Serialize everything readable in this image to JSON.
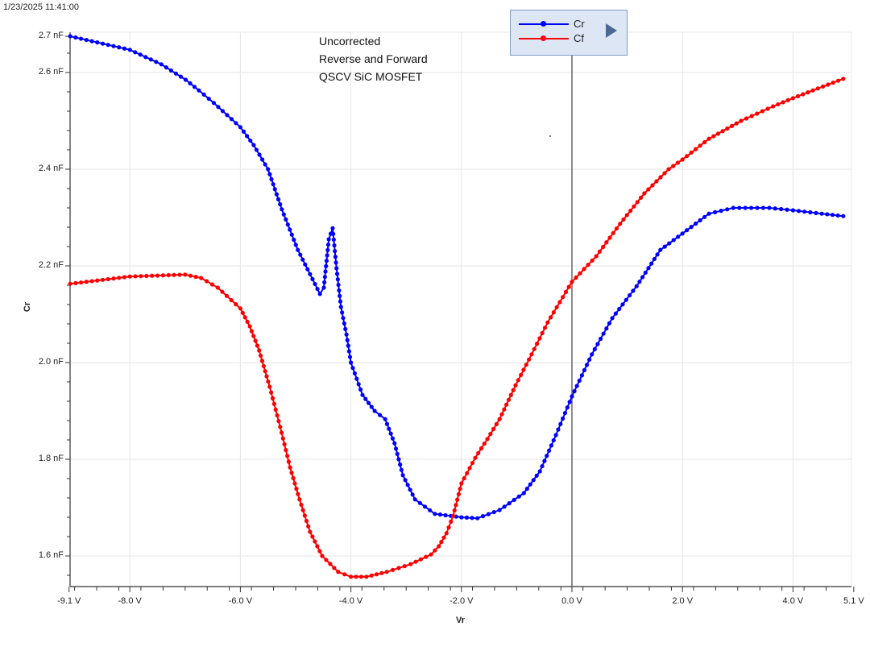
{
  "timestamp": "1/23/2025 11:41:00",
  "annotation": {
    "lines": [
      "Uncorrected",
      "Reverse and Forward",
      "QSCV SiC MOSFET"
    ]
  },
  "legend": {
    "items": [
      {
        "name": "Cr",
        "color": "#0000ff"
      },
      {
        "name": "Cf",
        "color": "#ff0000"
      }
    ],
    "expand_icon": "triangle-right-icon",
    "background": "#dde6f5"
  },
  "chart_data": {
    "type": "line",
    "title": "Uncorrected Reverse and Forward QSCV SiC MOSFET",
    "xlabel": "Vr",
    "ylabel": "Cr",
    "xlim": [
      -9.1,
      5.1
    ],
    "ylim": [
      1.55,
      2.7
    ],
    "x_unit": "V",
    "y_unit": "nF",
    "grid": true,
    "legend_position": "top-center",
    "x_tick_labels": [
      "-9.1 V",
      "-8.0 V",
      "-6.0 V",
      "-4.0 V",
      "-2.0 V",
      "0.0 V",
      "2.0 V",
      "4.0 V",
      "5.1 V"
    ],
    "x_ticks": [
      -9.1,
      -8.0,
      -6.0,
      -4.0,
      -2.0,
      0.0,
      2.0,
      4.0,
      5.1
    ],
    "y_tick_labels": [
      "2.7 nF",
      "2.6 nF",
      "2.4 nF",
      "2.2 nF",
      "2.0 nF",
      "1.8 nF",
      "1.6 nF"
    ],
    "y_ticks": [
      2.7,
      2.6,
      2.4,
      2.2,
      2.0,
      1.8,
      1.6
    ],
    "cursor_x": 0.0,
    "series": [
      {
        "name": "Cr",
        "color": "#0000ff",
        "x": [
          -9.08,
          -8.0,
          -7.43,
          -6.99,
          -6.75,
          -6.48,
          -6.0,
          -5.76,
          -5.5,
          -5.25,
          -4.96,
          -4.74,
          -4.56,
          -4.49,
          -4.4,
          -4.33,
          -4.26,
          -4.18,
          -4.08,
          -4.0,
          -3.79,
          -3.57,
          -3.38,
          -3.21,
          -3.06,
          -2.84,
          -2.48,
          -2.0,
          -1.71,
          -1.31,
          -0.87,
          -0.58,
          -0.29,
          0.0,
          0.36,
          0.73,
          1.17,
          1.6,
          2.0,
          2.48,
          2.92,
          3.57,
          4.0,
          4.52,
          4.91
        ],
        "values": [
          2.675,
          2.647,
          2.617,
          2.585,
          2.563,
          2.537,
          2.487,
          2.45,
          2.4,
          2.317,
          2.233,
          2.183,
          2.142,
          2.155,
          2.255,
          2.278,
          2.195,
          2.115,
          2.058,
          2.0,
          1.933,
          1.9,
          1.883,
          1.833,
          1.767,
          1.717,
          1.687,
          1.68,
          1.678,
          1.695,
          1.73,
          1.775,
          1.85,
          1.93,
          2.017,
          2.092,
          2.158,
          2.233,
          2.267,
          2.308,
          2.32,
          2.32,
          2.315,
          2.308,
          2.303
        ]
      },
      {
        "name": "Cf",
        "color": "#ff0000",
        "x": [
          -9.08,
          -8.0,
          -7.0,
          -6.71,
          -6.41,
          -6.0,
          -5.83,
          -5.66,
          -5.47,
          -5.28,
          -5.1,
          -4.93,
          -4.74,
          -4.52,
          -4.23,
          -4.0,
          -3.72,
          -3.35,
          -2.92,
          -2.55,
          -2.41,
          -2.27,
          -2.15,
          -2.0,
          -1.75,
          -1.53,
          -1.31,
          -1.02,
          -0.73,
          -0.44,
          0.0,
          0.44,
          0.87,
          1.31,
          1.75,
          2.0,
          2.48,
          3.06,
          3.64,
          4.0,
          4.45,
          4.91
        ],
        "values": [
          2.163,
          2.178,
          2.182,
          2.175,
          2.155,
          2.112,
          2.075,
          2.025,
          1.95,
          1.867,
          1.783,
          1.717,
          1.65,
          1.6,
          1.567,
          1.557,
          1.557,
          1.567,
          1.583,
          1.603,
          1.62,
          1.647,
          1.683,
          1.75,
          1.803,
          1.842,
          1.883,
          1.953,
          2.017,
          2.083,
          2.167,
          2.22,
          2.287,
          2.35,
          2.4,
          2.42,
          2.463,
          2.5,
          2.53,
          2.547,
          2.567,
          2.587
        ]
      }
    ]
  }
}
